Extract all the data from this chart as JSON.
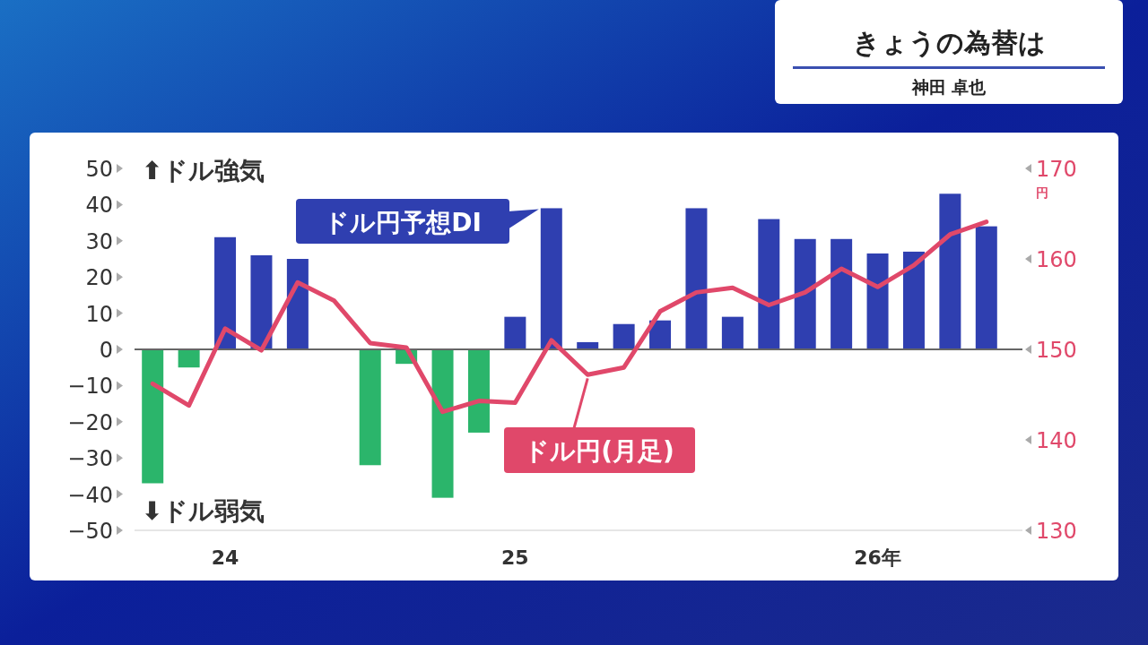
{
  "chart_data": {
    "type": "bar",
    "title": "きょうの為替は",
    "subtitle": "神田 卓也",
    "categories": [
      null,
      null,
      "24",
      null,
      null,
      null,
      null,
      null,
      null,
      null,
      "25",
      null,
      null,
      null,
      null,
      null,
      null,
      null,
      null,
      null,
      "26年",
      null,
      null,
      null
    ],
    "series": [
      {
        "name": "ドル円予想DI",
        "colors": [
          "#2bb56b",
          "#2bb56b",
          "#2f3fb0",
          "#2f3fb0",
          "#2f3fb0",
          "#2f3fb0",
          "#2bb56b",
          "#2bb56b",
          "#2bb56b",
          "#2bb56b",
          "#2f3fb0",
          "#2f3fb0",
          "#2f3fb0",
          "#2f3fb0",
          "#2f3fb0",
          "#2f3fb0",
          "#2f3fb0",
          "#2f3fb0",
          "#2f3fb0",
          "#2f3fb0",
          "#2f3fb0",
          "#2f3fb0",
          "#2f3fb0",
          "#2f3fb0"
        ],
        "values": [
          -37,
          -5,
          31,
          26,
          25,
          0,
          -32,
          -4,
          -41,
          -23,
          9,
          39,
          2,
          7,
          8,
          39,
          9,
          36,
          30.5,
          30.5,
          26.5,
          27,
          43,
          34
        ]
      },
      {
        "name": "ドル円(月足)",
        "type": "line",
        "axis": "y2",
        "color": "#e0486a",
        "values": [
          146.2,
          143.8,
          152.3,
          149.9,
          157.4,
          155.4,
          150.7,
          150.2,
          143.1,
          144.3,
          144.1,
          151.0,
          147.2,
          148.0,
          154.2,
          156.3,
          156.8,
          154.9,
          156.3,
          158.9,
          156.9,
          159.3,
          162.7,
          164.1
        ]
      }
    ],
    "ylim": [
      -50,
      50
    ],
    "yticks": [
      -50,
      -40,
      -30,
      -20,
      -10,
      0,
      10,
      20,
      30,
      40,
      50
    ],
    "y2lim": [
      130,
      170
    ],
    "y2ticks": [
      130,
      140,
      150,
      160,
      170
    ],
    "y2label": "円",
    "annotations": [
      "⬆ドル強気",
      "⬇ドル弱気"
    ]
  }
}
